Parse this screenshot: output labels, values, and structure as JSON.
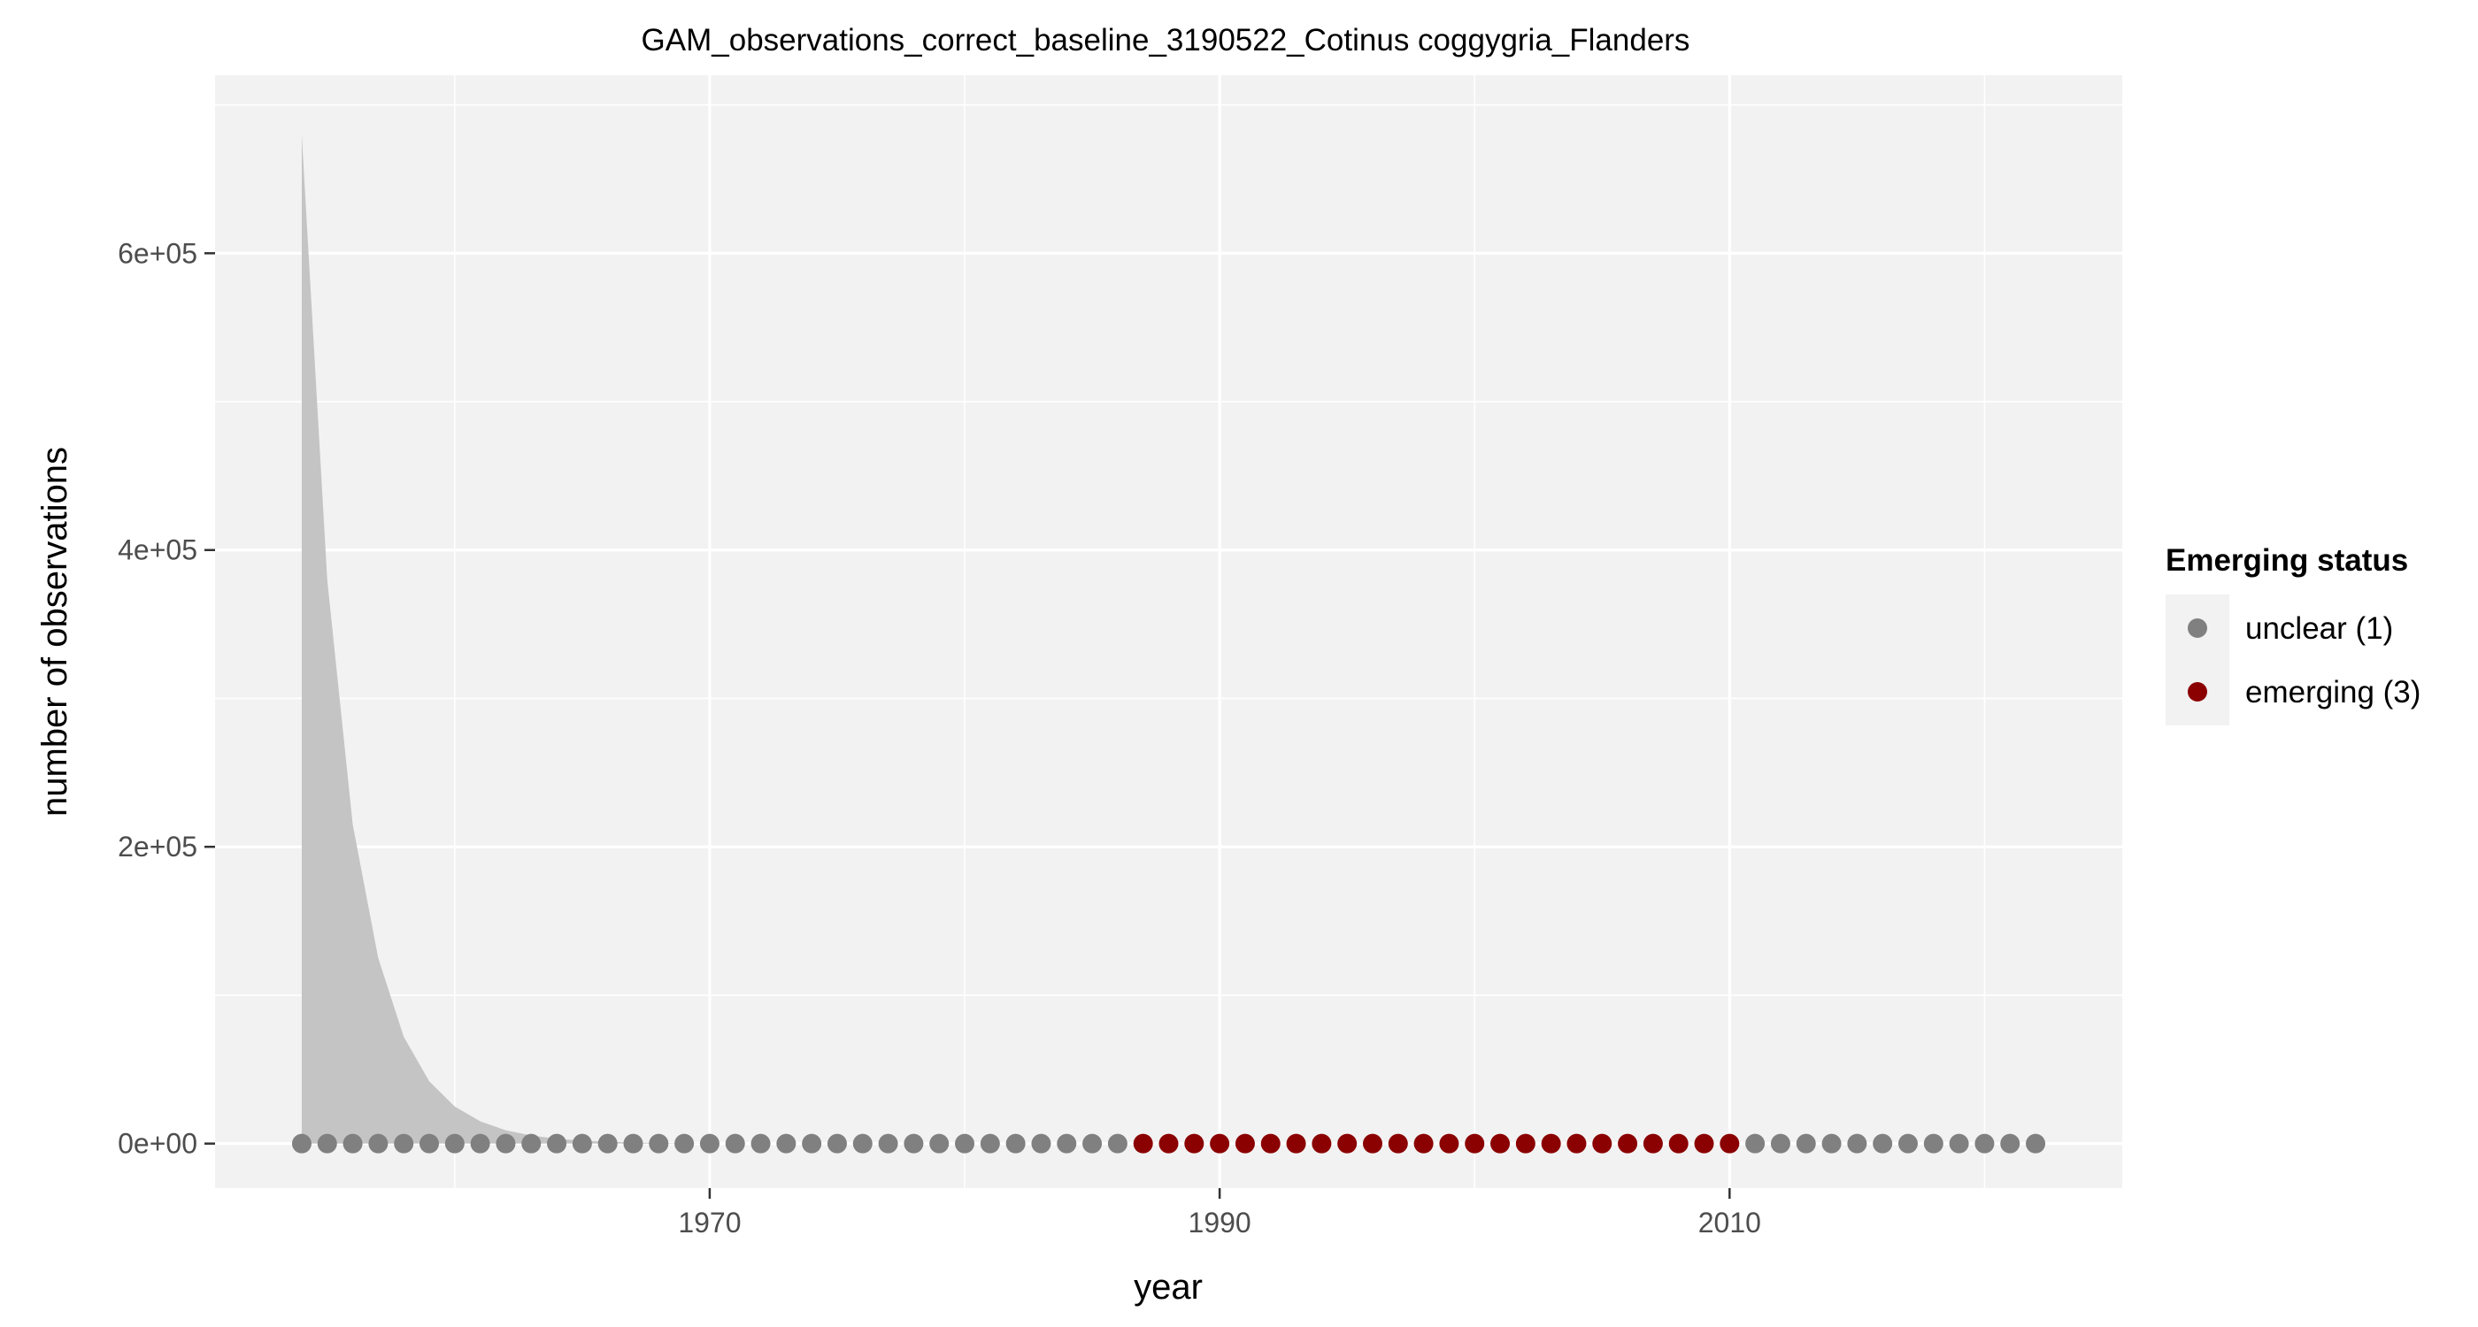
{
  "chart_data": {
    "type": "scatter",
    "title": "GAM_observations_correct_baseline_3190522_Cotinus coggygria_Flanders",
    "xlabel": "year",
    "ylabel": "number of observations",
    "xlim": [
      1950.6,
      2025.4
    ],
    "ylim": [
      -30000,
      720000
    ],
    "x_ticks": [
      1970,
      1990,
      2010
    ],
    "x_tick_labels": [
      "1970",
      "1990",
      "2010"
    ],
    "y_ticks": [
      0,
      200000,
      400000,
      600000
    ],
    "y_tick_labels": [
      "0e+00",
      "2e+05",
      "4e+05",
      "6e+05"
    ],
    "grid": true,
    "background_color": "#f2f2f2",
    "grid_color": "#ffffff",
    "confidence_band": {
      "color": "#c4c4c4",
      "x": [
        1954,
        1955,
        1956,
        1957,
        1958,
        1959,
        1960,
        1961,
        1962,
        1963,
        1964,
        1965,
        1966,
        1967,
        1968,
        1969,
        1970
      ],
      "upper": [
        680000,
        380000,
        215000,
        125000,
        72000,
        42000,
        25000,
        15000,
        9000,
        5500,
        3300,
        2000,
        1200,
        700,
        400,
        200,
        100
      ]
    },
    "legend": {
      "title": "Emerging status",
      "position": "right",
      "entries": [
        {
          "label": "unclear (1)",
          "color": "#808080"
        },
        {
          "label": "emerging (3)",
          "color": "#8b0000"
        }
      ]
    },
    "series": [
      {
        "name": "unclear (1)",
        "color": "#808080",
        "x": [
          1954,
          1955,
          1956,
          1957,
          1958,
          1959,
          1960,
          1961,
          1962,
          1963,
          1964,
          1965,
          1966,
          1967,
          1968,
          1969,
          1970,
          1971,
          1972,
          1973,
          1974,
          1975,
          1976,
          1977,
          1978,
          1979,
          1980,
          1981,
          1982,
          1983,
          1984,
          1985,
          1986,
          2011,
          2012,
          2013,
          2014,
          2015,
          2016,
          2017,
          2018,
          2019,
          2020,
          2021,
          2022
        ],
        "y": [
          0,
          0,
          0,
          0,
          0,
          0,
          0,
          0,
          0,
          0,
          0,
          0,
          0,
          0,
          0,
          0,
          0,
          0,
          0,
          0,
          0,
          0,
          0,
          0,
          0,
          0,
          0,
          0,
          0,
          0,
          0,
          0,
          0,
          0,
          0,
          0,
          0,
          0,
          0,
          0,
          0,
          0,
          0,
          0,
          0
        ]
      },
      {
        "name": "emerging (3)",
        "color": "#8b0000",
        "x": [
          1987,
          1988,
          1989,
          1990,
          1991,
          1992,
          1993,
          1994,
          1995,
          1996,
          1997,
          1998,
          1999,
          2000,
          2001,
          2002,
          2003,
          2004,
          2005,
          2006,
          2007,
          2008,
          2009,
          2010
        ],
        "y": [
          0,
          0,
          0,
          0,
          0,
          0,
          0,
          0,
          0,
          0,
          0,
          0,
          0,
          0,
          0,
          0,
          0,
          0,
          0,
          0,
          0,
          0,
          0,
          0
        ]
      }
    ]
  }
}
